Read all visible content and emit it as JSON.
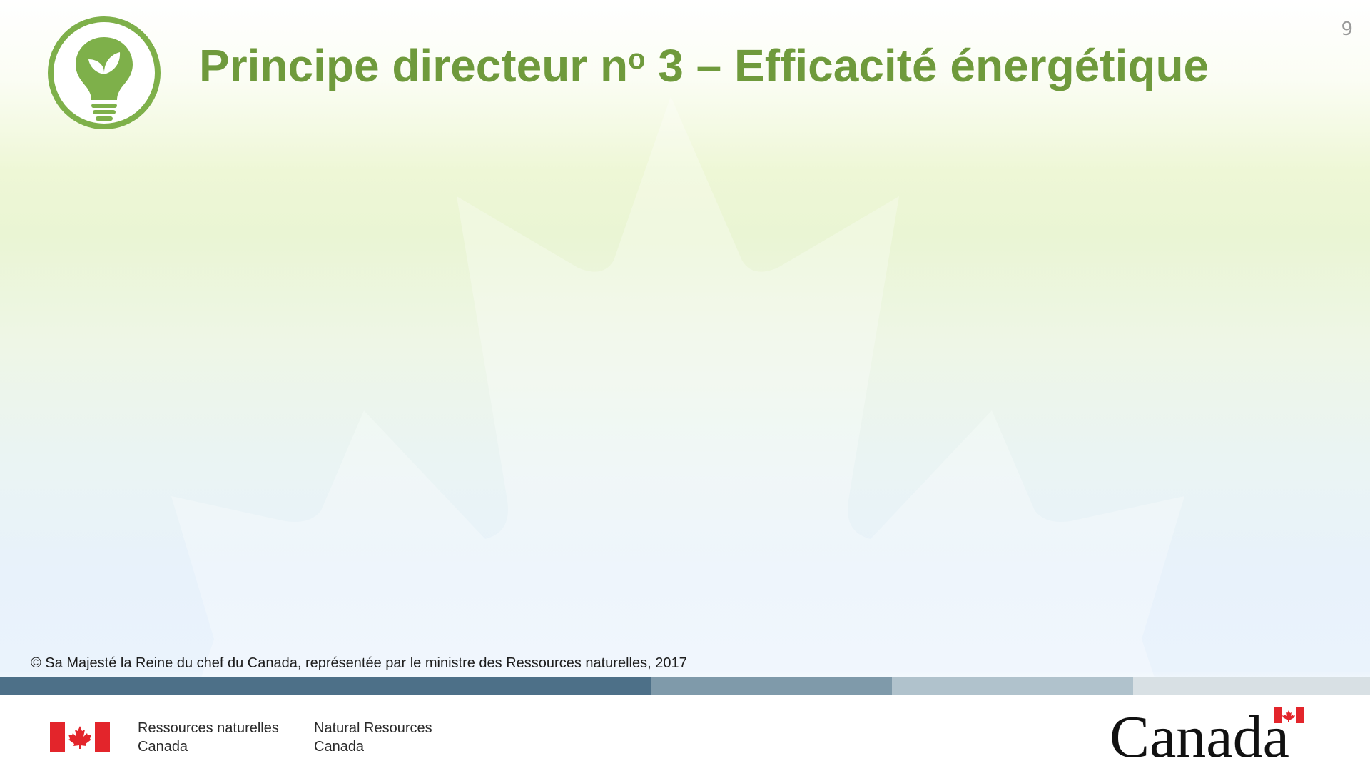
{
  "slide": {
    "page_number": "9",
    "title_main": "Principe directeur n",
    "title_sup": "o",
    "title_rest": " 3 – Efficacité énergétique",
    "title_icon": "lightbulb-leaf-icon",
    "accent_color": "#6f9a3c",
    "watermark_icon": "maple-leaf-icon"
  },
  "footer": {
    "copyright": "© Sa Majesté la Reine du chef du Canada, représentée par le ministre des Ressources naturelles, 2017",
    "bar_colors": [
      "#4d7088",
      "#7f9aaa",
      "#b0c2cc",
      "#d8e0e4"
    ],
    "department_fr": [
      "Ressources naturelles",
      "Canada"
    ],
    "department_en": [
      "Natural Resources",
      "Canada"
    ],
    "flag_icon": "canada-flag-icon",
    "wordmark": "Canada"
  }
}
